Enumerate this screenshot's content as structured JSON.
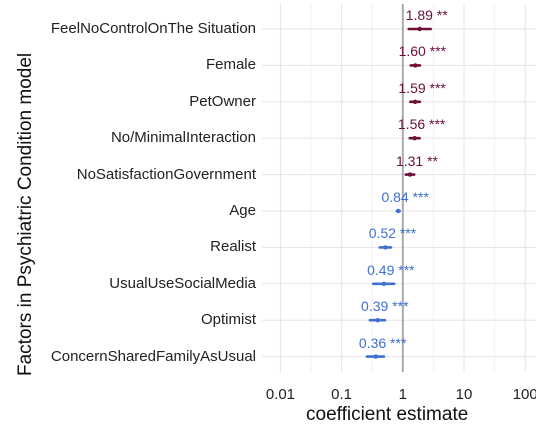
{
  "chart_data": {
    "type": "scatter",
    "xlabel": "coefficient estimate",
    "ylabel": "Factors in Psychiatric Condition model",
    "x_scale": "log10",
    "xlim": [
      0.005,
      150
    ],
    "xticks": [
      "0.01",
      "0.1",
      "1",
      "10",
      "100"
    ],
    "xtick_values": [
      0.01,
      0.1,
      1,
      10,
      100
    ],
    "reference_line": 1,
    "grid": true,
    "colors": {
      "above_one": "#6b0f3a",
      "below_one": "#3f6fd1",
      "reference": "#aaaaaa",
      "grid": "#e5e5e5"
    },
    "factors": [
      {
        "name": "FeelNoControlOnThe Situation",
        "estimate": 1.89,
        "ci": [
          1.25,
          2.85
        ],
        "label": "1.89 **"
      },
      {
        "name": "Female",
        "estimate": 1.6,
        "ci": [
          1.35,
          1.9
        ],
        "label": "1.60 ***"
      },
      {
        "name": "PetOwner",
        "estimate": 1.59,
        "ci": [
          1.33,
          1.9
        ],
        "label": "1.59 ***"
      },
      {
        "name": "No/MinimalInteraction",
        "estimate": 1.56,
        "ci": [
          1.3,
          1.88
        ],
        "label": "1.56 ***"
      },
      {
        "name": "NoSatisfactionGovernment",
        "estimate": 1.31,
        "ci": [
          1.12,
          1.53
        ],
        "label": "1.31 **"
      },
      {
        "name": "Age",
        "estimate": 0.84,
        "ci": [
          0.8,
          0.89
        ],
        "label": "0.84 ***"
      },
      {
        "name": "Realist",
        "estimate": 0.52,
        "ci": [
          0.42,
          0.64
        ],
        "label": "0.52 ***"
      },
      {
        "name": "UsualUseSocialMedia",
        "estimate": 0.49,
        "ci": [
          0.33,
          0.72
        ],
        "label": "0.49 ***"
      },
      {
        "name": "Optimist",
        "estimate": 0.39,
        "ci": [
          0.29,
          0.51
        ],
        "label": "0.39 ***"
      },
      {
        "name": "ConcernSharedFamilyAsUsual",
        "estimate": 0.36,
        "ci": [
          0.26,
          0.49
        ],
        "label": "0.36 ***"
      }
    ]
  }
}
